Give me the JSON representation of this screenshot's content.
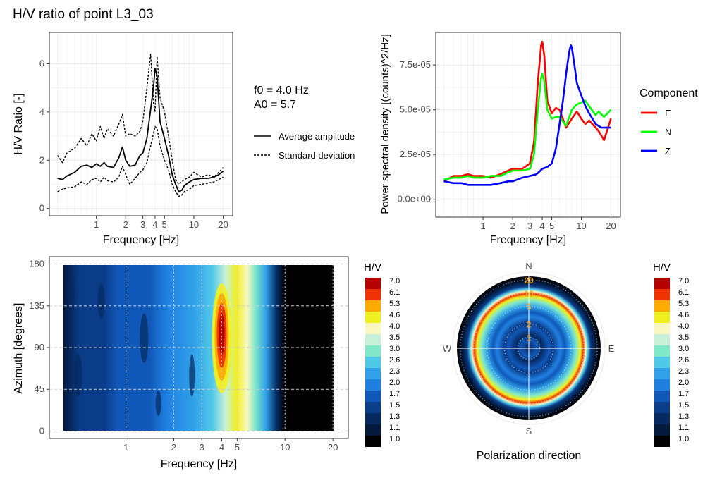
{
  "title": "H/V ratio of point L3_03",
  "colors": {
    "panel_grid": "#ebebeb",
    "panel_border": "#333333",
    "axis_text": "#4d4d4d",
    "E": "#ff0000",
    "N": "#00ff00",
    "Z": "#0000ff"
  },
  "chart_data": [
    {
      "name": "hv-curve",
      "type": "line",
      "xlabel": "Frequency [Hz]",
      "ylabel": "H/V Ratio [-]",
      "x_scale": "log",
      "xlim": [
        0.33,
        25
      ],
      "ylim": [
        -0.3,
        7.3
      ],
      "x_ticks": [
        1,
        2,
        3,
        4,
        5,
        10,
        20
      ],
      "y_ticks": [
        0,
        2,
        4,
        6
      ],
      "annotation": [
        "f0 = 4.0 Hz",
        "A0 = 5.7"
      ],
      "legend": [
        {
          "label": "Average amplitude",
          "style": "solid"
        },
        {
          "label": "Standard deviation",
          "style": "dashed"
        }
      ],
      "series": [
        {
          "name": "Average amplitude",
          "x": [
            0.4,
            0.45,
            0.5,
            0.6,
            0.7,
            0.8,
            0.9,
            1.0,
            1.1,
            1.2,
            1.3,
            1.5,
            1.7,
            1.85,
            2.0,
            2.2,
            2.5,
            2.8,
            3.0,
            3.3,
            3.6,
            3.85,
            4.0,
            4.2,
            4.5,
            5.0,
            5.5,
            6.0,
            6.5,
            7.0,
            7.5,
            8.0,
            9.0,
            10,
            12,
            14,
            16,
            18,
            20
          ],
          "y": [
            1.25,
            1.2,
            1.35,
            1.5,
            1.75,
            1.8,
            1.7,
            1.85,
            1.75,
            1.9,
            1.75,
            1.7,
            2.1,
            2.55,
            2.0,
            1.75,
            1.8,
            2.2,
            2.3,
            2.9,
            4.1,
            5.0,
            5.8,
            5.5,
            3.6,
            2.9,
            2.2,
            1.4,
            1.0,
            0.7,
            0.75,
            0.95,
            1.1,
            1.2,
            1.25,
            1.25,
            1.3,
            1.4,
            1.55
          ]
        },
        {
          "name": "Standard deviation (upper)",
          "x": [
            0.4,
            0.45,
            0.5,
            0.6,
            0.7,
            0.8,
            0.9,
            1.0,
            1.1,
            1.2,
            1.3,
            1.5,
            1.7,
            1.85,
            2.0,
            2.2,
            2.5,
            2.8,
            3.0,
            3.3,
            3.6,
            3.85,
            4.0,
            4.2,
            4.5,
            5.0,
            5.5,
            6.0,
            6.5,
            7.0,
            7.5,
            8.0,
            9.0,
            10,
            12,
            14,
            16,
            18,
            20
          ],
          "y": [
            2.2,
            1.9,
            2.3,
            2.5,
            2.9,
            2.6,
            3.1,
            2.8,
            3.4,
            2.9,
            3.3,
            3.0,
            3.5,
            3.9,
            3.0,
            3.1,
            3.0,
            3.2,
            3.6,
            5.0,
            6.4,
            4.4,
            4.0,
            6.3,
            4.6,
            4.0,
            3.0,
            2.0,
            1.2,
            1.0,
            1.1,
            1.2,
            1.3,
            1.5,
            1.3,
            1.4,
            1.3,
            1.5,
            1.7
          ]
        },
        {
          "name": "Standard deviation (lower)",
          "x": [
            0.4,
            0.45,
            0.5,
            0.6,
            0.7,
            0.8,
            0.9,
            1.0,
            1.1,
            1.2,
            1.3,
            1.5,
            1.7,
            1.85,
            2.0,
            2.2,
            2.5,
            2.8,
            3.0,
            3.3,
            3.6,
            3.85,
            4.0,
            4.2,
            4.5,
            5.0,
            5.5,
            6.0,
            6.5,
            7.0,
            7.5,
            8.0,
            9.0,
            10,
            12,
            14,
            16,
            18,
            20
          ],
          "y": [
            0.7,
            0.8,
            0.85,
            0.9,
            1.1,
            1.0,
            1.2,
            1.25,
            1.1,
            1.3,
            1.15,
            1.1,
            1.3,
            1.75,
            1.4,
            1.0,
            1.25,
            1.5,
            1.6,
            1.9,
            2.6,
            3.1,
            3.4,
            3.3,
            2.6,
            2.0,
            1.6,
            1.0,
            0.7,
            0.5,
            0.55,
            0.7,
            0.8,
            0.95,
            1.0,
            1.05,
            1.1,
            1.2,
            1.3
          ]
        }
      ]
    },
    {
      "name": "psd",
      "type": "line",
      "xlabel": "Frequency [Hz]",
      "ylabel": "Power spectral density [(counts)^2/Hz]",
      "x_scale": "log",
      "xlim": [
        0.33,
        25
      ],
      "ylim": [
        -1e-05,
        9.32e-05
      ],
      "x_ticks": [
        1,
        2,
        3,
        4,
        5,
        10,
        20
      ],
      "y_ticks": [
        0,
        2.5e-05,
        5e-05,
        7.5e-05
      ],
      "y_tick_labels": [
        "0.0e+00",
        "2.5e-05",
        "5.0e-05",
        "7.5e-05"
      ],
      "legend_title": "Component",
      "series": [
        {
          "name": "E",
          "color": "#ff0000",
          "x": [
            0.4,
            0.5,
            0.6,
            0.7,
            0.8,
            1.0,
            1.2,
            1.5,
            1.8,
            2.0,
            2.5,
            3.0,
            3.3,
            3.6,
            3.9,
            4.0,
            4.2,
            4.5,
            5.0,
            5.5,
            6.0,
            7.0,
            8.0,
            9.0,
            10,
            11,
            12,
            14,
            15,
            17,
            20
          ],
          "y": [
            1e-05,
            1.3e-05,
            1.3e-05,
            1.4e-05,
            1.3e-05,
            1.3e-05,
            1.2e-05,
            1.4e-05,
            1.6e-05,
            1.7e-05,
            1.7e-05,
            2e-05,
            3.2e-05,
            6.5e-05,
            8.6e-05,
            8.8e-05,
            8e-05,
            5.5e-05,
            4.8e-05,
            5.1e-05,
            5e-05,
            4e-05,
            4.5e-05,
            4.9e-05,
            4.5e-05,
            4.2e-05,
            4.4e-05,
            4e-05,
            3.8e-05,
            3.3e-05,
            4.5e-05
          ]
        },
        {
          "name": "N",
          "color": "#00ff00",
          "x": [
            0.4,
            0.5,
            0.6,
            0.7,
            0.8,
            1.0,
            1.2,
            1.5,
            1.8,
            2.0,
            2.5,
            3.0,
            3.3,
            3.6,
            3.9,
            4.0,
            4.2,
            4.5,
            5.0,
            5.5,
            6.0,
            7.0,
            8.0,
            9.0,
            10,
            11,
            12,
            14,
            15,
            17,
            20
          ],
          "y": [
            1.1e-05,
            1.2e-05,
            1.2e-05,
            1.3e-05,
            1.2e-05,
            1.2e-05,
            1.3e-05,
            1.3e-05,
            1.5e-05,
            1.6e-05,
            1.6e-05,
            1.7e-05,
            2.5e-05,
            5e-05,
            6.8e-05,
            7e-05,
            6.6e-05,
            5e-05,
            4.5e-05,
            4.6e-05,
            4.6e-05,
            4.1e-05,
            5e-05,
            5.3e-05,
            5.4e-05,
            5.5e-05,
            5.2e-05,
            4.7e-05,
            4.9e-05,
            4.6e-05,
            5e-05
          ]
        },
        {
          "name": "Z",
          "color": "#0000ff",
          "x": [
            0.4,
            0.5,
            0.6,
            0.7,
            0.8,
            1.0,
            1.2,
            1.5,
            1.8,
            2.0,
            2.5,
            3.0,
            3.5,
            4.0,
            4.5,
            5.0,
            5.5,
            6.0,
            6.5,
            7.0,
            7.5,
            7.8,
            8.0,
            8.5,
            9.0,
            10,
            11,
            12,
            14,
            16,
            18,
            20
          ],
          "y": [
            1e-05,
            9e-06,
            9e-06,
            8e-06,
            8e-06,
            8e-06,
            8e-06,
            9e-06,
            1e-05,
            1e-05,
            1.2e-05,
            1.3e-05,
            1.4e-05,
            1.7e-05,
            1.8e-05,
            2e-05,
            2.8e-05,
            4.2e-05,
            5.5e-05,
            7e-05,
            8.2e-05,
            8.6e-05,
            8.5e-05,
            7.5e-05,
            6.5e-05,
            5.8e-05,
            5.2e-05,
            4.8e-05,
            4.2e-05,
            4e-05,
            4e-05,
            4e-05
          ]
        }
      ]
    },
    {
      "name": "azimuth-map",
      "type": "heatmap",
      "xlabel": "Frequency [Hz]",
      "ylabel": "Azimuth [degrees]",
      "x_scale": "log",
      "xlim": [
        0.33,
        25
      ],
      "ylim": [
        -8,
        188
      ],
      "x_ticks": [
        1,
        2,
        3,
        4,
        5,
        10,
        20
      ],
      "y_ticks": [
        0,
        45,
        90,
        135,
        180
      ],
      "peak_frequency": 4.0,
      "peak_azimuth": 100,
      "peak_value": 7.0
    },
    {
      "name": "polarization",
      "type": "heatmap",
      "projection": "polar",
      "caption": "Polarization direction",
      "directions": [
        "N",
        "E",
        "S",
        "W"
      ],
      "radial_labels": [
        "1",
        "2",
        "5",
        "10",
        "20"
      ],
      "radial_values": [
        1,
        2,
        5,
        10,
        20
      ]
    }
  ],
  "colorscale": {
    "title": "H/V",
    "levels": [
      "7.0",
      "6.1",
      "5.3",
      "4.6",
      "4.0",
      "3.5",
      "3.0",
      "2.6",
      "2.3",
      "2.0",
      "1.7",
      "1.5",
      "1.3",
      "1.1",
      "1.0"
    ],
    "colors": [
      "#b30000",
      "#ee3300",
      "#ffaa00",
      "#f0f020",
      "#f8f8c0",
      "#c8f0d8",
      "#80e8c8",
      "#50c8e8",
      "#30a0e8",
      "#2080e0",
      "#1058b8",
      "#0a3c88",
      "#062a60",
      "#031a3c",
      "#000000"
    ]
  }
}
